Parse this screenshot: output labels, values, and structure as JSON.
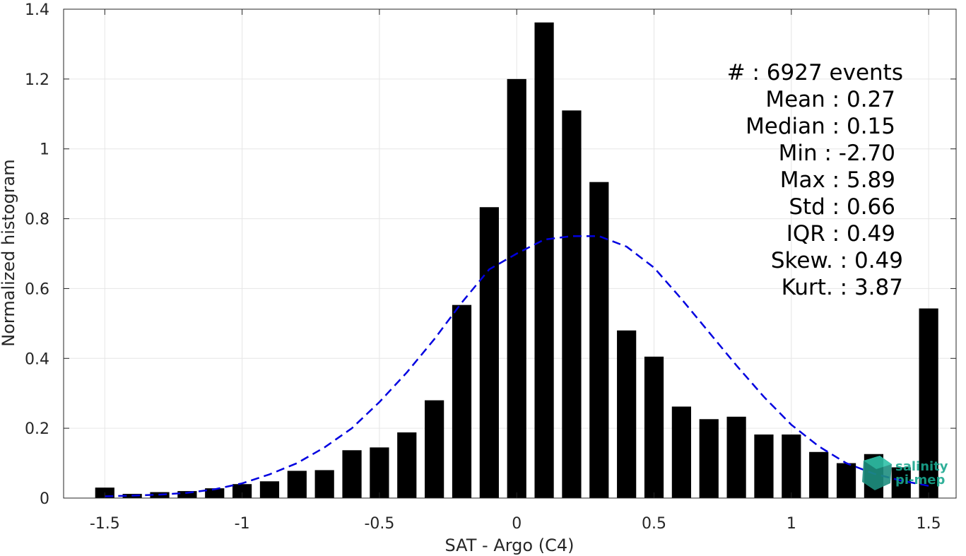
{
  "chart_data": {
    "type": "bar",
    "xlabel": "SAT - Argo (C4)",
    "ylabel": "Normalized histogram",
    "xlim": [
      -1.65,
      1.6
    ],
    "ylim": [
      0,
      1.4
    ],
    "xticks": [
      -1.5,
      -1,
      -0.5,
      0,
      0.5,
      1,
      1.5
    ],
    "xtick_labels": [
      "-1.5",
      "-1",
      "-0.5",
      "0",
      "0.5",
      "1",
      "1.5"
    ],
    "yticks": [
      0,
      0.2,
      0.4,
      0.6,
      0.8,
      1,
      1.2,
      1.4
    ],
    "ytick_labels": [
      "0",
      "0.2",
      "0.4",
      "0.6",
      "0.8",
      "1",
      "1.2",
      "1.4"
    ],
    "grid": true,
    "bar_color": "#000000",
    "bar_width": 0.07,
    "bars": {
      "x": [
        -1.5,
        -1.4,
        -1.3,
        -1.2,
        -1.1,
        -1.0,
        -0.9,
        -0.8,
        -0.7,
        -0.6,
        -0.5,
        -0.4,
        -0.3,
        -0.2,
        -0.1,
        0.0,
        0.1,
        0.2,
        0.3,
        0.4,
        0.5,
        0.6,
        0.7,
        0.8,
        0.9,
        1.0,
        1.1,
        1.2,
        1.3,
        1.4,
        1.5
      ],
      "values": [
        0.03,
        0.012,
        0.017,
        0.02,
        0.028,
        0.04,
        0.048,
        0.078,
        0.08,
        0.137,
        0.145,
        0.188,
        0.28,
        0.553,
        0.833,
        1.2,
        1.362,
        1.11,
        0.905,
        0.48,
        0.405,
        0.262,
        0.226,
        0.233,
        0.182,
        0.182,
        0.132,
        0.1,
        0.126,
        0.088,
        0.543
      ]
    },
    "fit": {
      "style": "dashed",
      "color": "#0000e0",
      "x": [
        -1.5,
        -1.4,
        -1.3,
        -1.2,
        -1.1,
        -1.0,
        -0.9,
        -0.8,
        -0.7,
        -0.6,
        -0.5,
        -0.4,
        -0.3,
        -0.2,
        -0.1,
        0.0,
        0.1,
        0.2,
        0.3,
        0.4,
        0.5,
        0.6,
        0.7,
        0.8,
        0.9,
        1.0,
        1.1,
        1.2,
        1.3,
        1.4,
        1.5
      ],
      "values": [
        0.005,
        0.007,
        0.01,
        0.015,
        0.025,
        0.042,
        0.068,
        0.1,
        0.145,
        0.2,
        0.275,
        0.36,
        0.455,
        0.56,
        0.655,
        0.7,
        0.74,
        0.75,
        0.75,
        0.72,
        0.66,
        0.57,
        0.475,
        0.38,
        0.29,
        0.21,
        0.148,
        0.1,
        0.07,
        0.05,
        0.035
      ]
    },
    "annotations": [
      "#  : 6927 events",
      "Mean : 0.27",
      "Median : 0.15",
      "Min : -2.70",
      "Max : 5.89",
      "Std : 0.66",
      "IQR : 0.49",
      "Skew. : 0.49",
      "Kurt. : 3.87"
    ]
  },
  "logo": {
    "line1": "salinity",
    "line2": "pi-mep",
    "color": "#1aa88f"
  }
}
